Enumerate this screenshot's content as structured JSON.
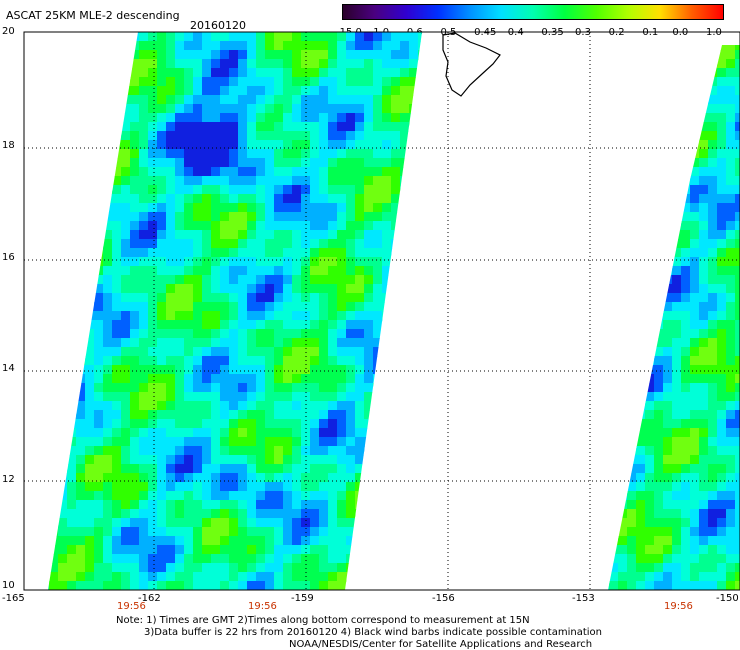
{
  "header": {
    "title": "ASCAT 25KM MLE-2 descending",
    "date": "20160120"
  },
  "colorbar": {
    "labels": [
      "-15.0",
      "-1.0",
      "-0.6",
      "-0.5",
      "-0.45",
      "-0.4",
      "-0.35",
      "-0.3",
      "-0.2",
      "-0.1",
      "0.0",
      "1.0"
    ],
    "colors": [
      "#2a002a",
      "#4a0080",
      "#3000d0",
      "#0030ff",
      "#0090ff",
      "#00e0ff",
      "#00ffb0",
      "#00ff40",
      "#50ff00",
      "#b0ff00",
      "#ffe000",
      "#ff6000",
      "#ff0000"
    ]
  },
  "map": {
    "lat_labels": [
      "20",
      "18",
      "16",
      "14",
      "12",
      "10"
    ],
    "lon_labels": [
      "-165",
      "-162",
      "-159",
      "-156",
      "-153",
      "-150"
    ],
    "times": [
      "19:56",
      "19:56",
      "19:56"
    ]
  },
  "notes": {
    "line1": "Note: 1) Times are GMT 2)Times along bottom correspond to measurement at 15N",
    "line2": "3)Data buffer is 22 hrs from 20160120 4) Black wind barbs indicate possible contamination",
    "line3": "NOAA/NESDIS/Center for Satellite Applications and Research"
  }
}
